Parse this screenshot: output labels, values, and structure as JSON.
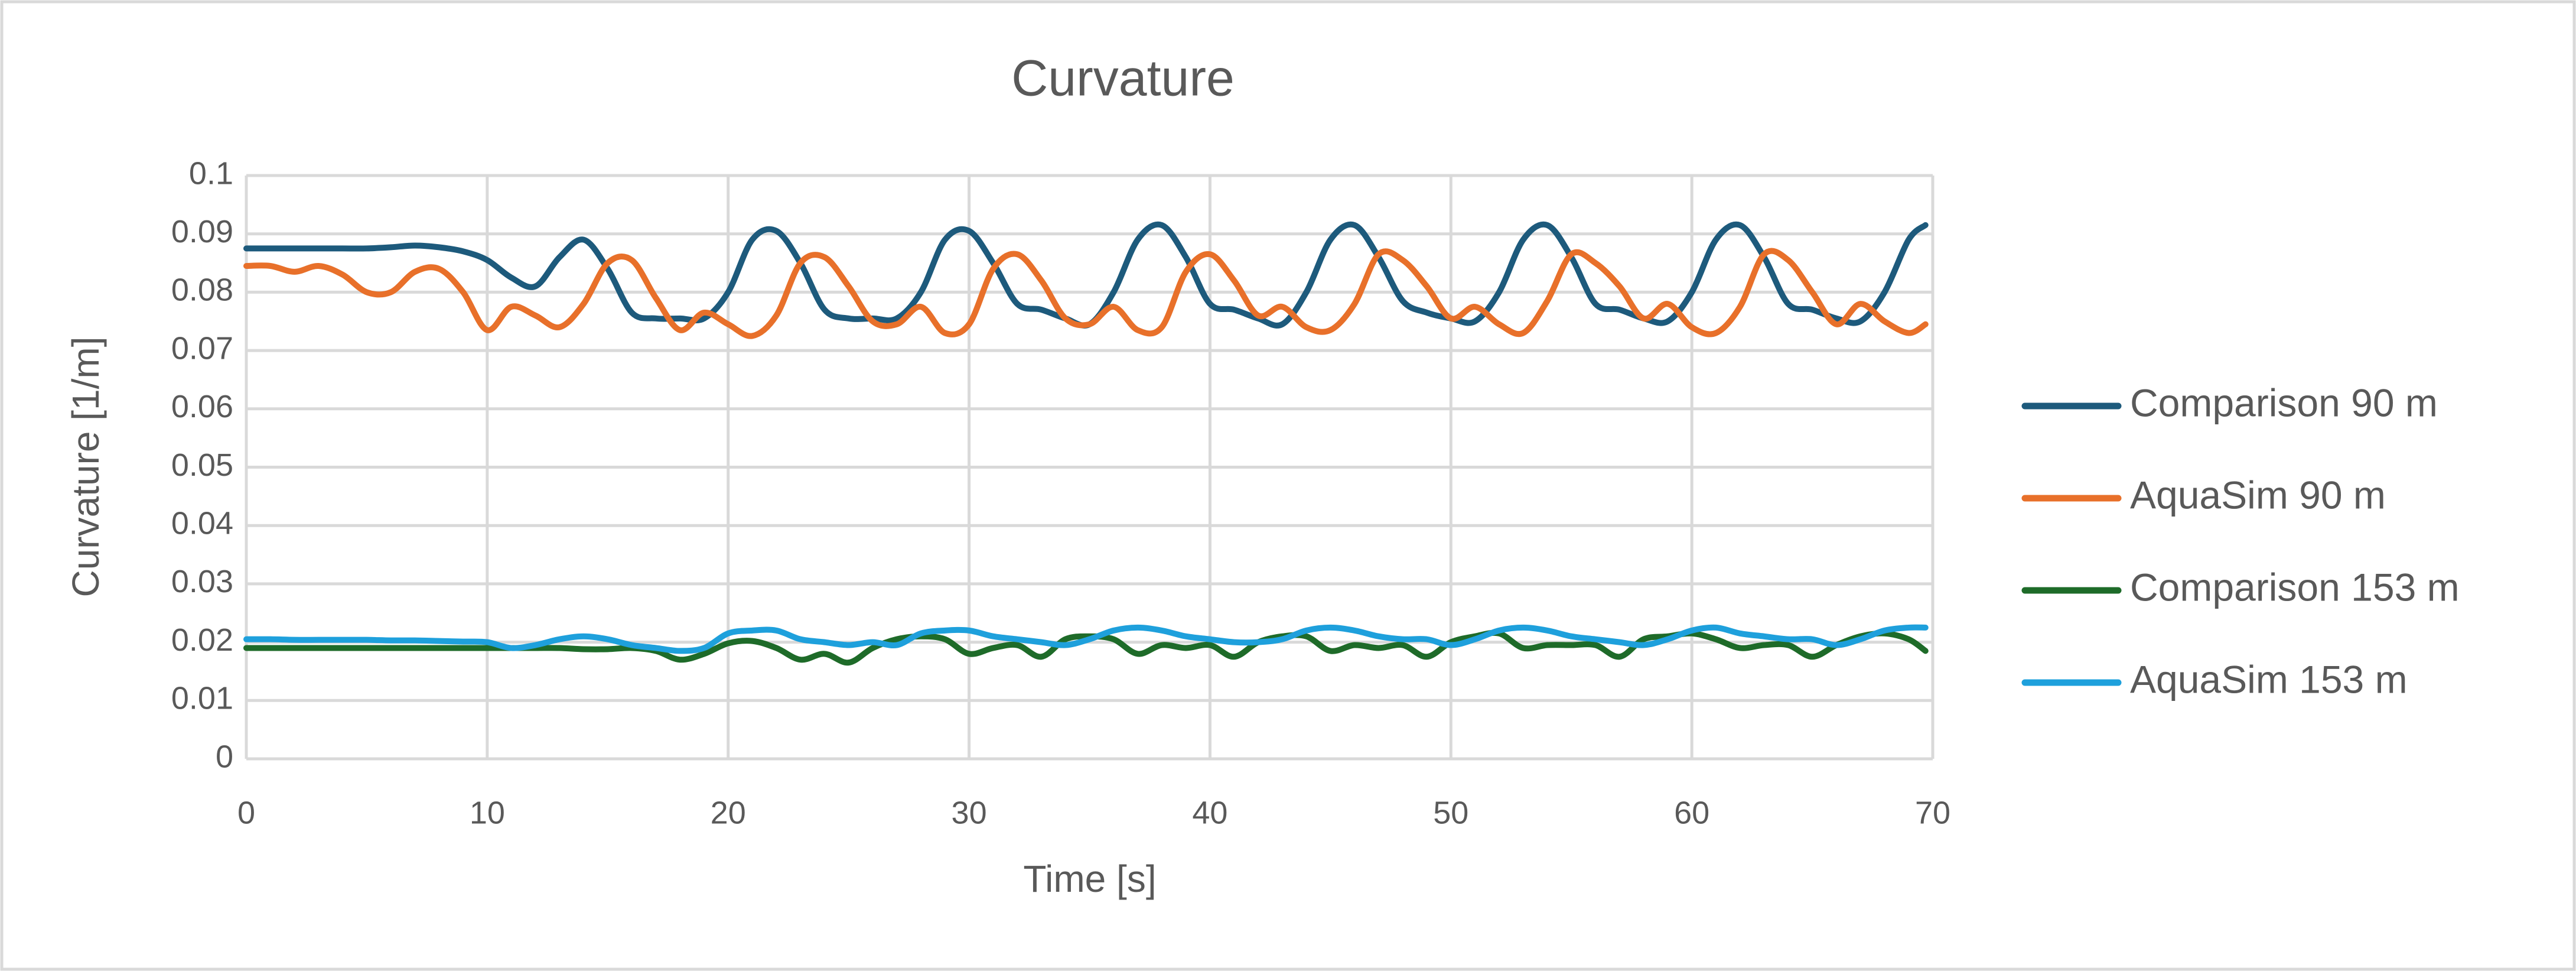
{
  "chart_data": {
    "type": "line",
    "title": "Curvature",
    "x_label": "Time [s]",
    "y_label": "Curvature [1/m]",
    "x": [
      0,
      1,
      2,
      3,
      4,
      5,
      6,
      7,
      8,
      9,
      10,
      11,
      12,
      13,
      14,
      15,
      16,
      17,
      18,
      19,
      20,
      21,
      22,
      23,
      24,
      25,
      26,
      27,
      28,
      29,
      30,
      31,
      32,
      33,
      34,
      35,
      36,
      37,
      38,
      39,
      40,
      41,
      42,
      43,
      44,
      45,
      46,
      47,
      48,
      49,
      50,
      51,
      52,
      53,
      54,
      55,
      56,
      57,
      58,
      59,
      60,
      61,
      62,
      63,
      64,
      65,
      66,
      67,
      68,
      69,
      69.7
    ],
    "series": [
      {
        "name": "Comparison 90 m",
        "color": "#1d5a7c",
        "values": [
          0.0875,
          0.0875,
          0.0875,
          0.0875,
          0.0875,
          0.0875,
          0.0877,
          0.088,
          0.0877,
          0.087,
          0.0855,
          0.0825,
          0.081,
          0.086,
          0.089,
          0.084,
          0.0765,
          0.0755,
          0.0755,
          0.0755,
          0.08,
          0.089,
          0.0905,
          0.085,
          0.077,
          0.0755,
          0.0755,
          0.0755,
          0.08,
          0.089,
          0.0905,
          0.085,
          0.078,
          0.077,
          0.0755,
          0.0745,
          0.08,
          0.089,
          0.0915,
          0.086,
          0.078,
          0.077,
          0.0755,
          0.0745,
          0.08,
          0.089,
          0.0915,
          0.086,
          0.0785,
          0.0765,
          0.0755,
          0.075,
          0.08,
          0.089,
          0.0915,
          0.086,
          0.078,
          0.077,
          0.0755,
          0.075,
          0.08,
          0.089,
          0.0915,
          0.086,
          0.078,
          0.077,
          0.0755,
          0.075,
          0.08,
          0.089,
          0.0915
        ]
      },
      {
        "name": "AquaSim 90 m",
        "color": "#e8702a",
        "values": [
          0.0845,
          0.0845,
          0.0835,
          0.0845,
          0.083,
          0.08,
          0.08,
          0.0835,
          0.084,
          0.08,
          0.0735,
          0.0775,
          0.076,
          0.074,
          0.078,
          0.085,
          0.0855,
          0.079,
          0.0735,
          0.0765,
          0.0745,
          0.0725,
          0.076,
          0.085,
          0.086,
          0.081,
          0.075,
          0.0745,
          0.0775,
          0.073,
          0.0745,
          0.084,
          0.0865,
          0.082,
          0.0755,
          0.0745,
          0.0775,
          0.0735,
          0.074,
          0.0835,
          0.0865,
          0.082,
          0.076,
          0.0775,
          0.074,
          0.0735,
          0.078,
          0.0865,
          0.0855,
          0.081,
          0.0755,
          0.0775,
          0.0745,
          0.073,
          0.0785,
          0.0865,
          0.085,
          0.081,
          0.0755,
          0.078,
          0.074,
          0.073,
          0.0775,
          0.0865,
          0.0855,
          0.08,
          0.0745,
          0.078,
          0.075,
          0.073,
          0.0745
        ]
      },
      {
        "name": "Comparison 153 m",
        "color": "#1e6b29",
        "values": [
          0.019,
          0.019,
          0.019,
          0.019,
          0.019,
          0.019,
          0.019,
          0.019,
          0.019,
          0.019,
          0.019,
          0.019,
          0.019,
          0.019,
          0.0188,
          0.0188,
          0.019,
          0.0185,
          0.017,
          0.018,
          0.0198,
          0.0202,
          0.019,
          0.017,
          0.018,
          0.0165,
          0.019,
          0.0205,
          0.021,
          0.0205,
          0.018,
          0.019,
          0.0195,
          0.0175,
          0.0205,
          0.021,
          0.0205,
          0.018,
          0.0195,
          0.019,
          0.0195,
          0.0175,
          0.02,
          0.021,
          0.021,
          0.0185,
          0.0195,
          0.019,
          0.0195,
          0.0175,
          0.02,
          0.021,
          0.0215,
          0.019,
          0.0195,
          0.0195,
          0.0195,
          0.0175,
          0.0205,
          0.021,
          0.0215,
          0.0205,
          0.019,
          0.0195,
          0.0195,
          0.0175,
          0.0195,
          0.021,
          0.0215,
          0.0205,
          0.0185
        ]
      },
      {
        "name": "AquaSim 153 m",
        "color": "#1ea0dc",
        "values": [
          0.0205,
          0.0205,
          0.0204,
          0.0204,
          0.0204,
          0.0204,
          0.0203,
          0.0203,
          0.0202,
          0.0201,
          0.02,
          0.019,
          0.0195,
          0.0205,
          0.021,
          0.0205,
          0.0195,
          0.019,
          0.0185,
          0.019,
          0.0215,
          0.022,
          0.022,
          0.0205,
          0.02,
          0.0195,
          0.02,
          0.0195,
          0.0215,
          0.022,
          0.022,
          0.021,
          0.0205,
          0.02,
          0.0195,
          0.0205,
          0.022,
          0.0225,
          0.022,
          0.021,
          0.0205,
          0.02,
          0.02,
          0.0205,
          0.022,
          0.0225,
          0.022,
          0.021,
          0.0205,
          0.0205,
          0.0195,
          0.0205,
          0.022,
          0.0225,
          0.022,
          0.021,
          0.0205,
          0.02,
          0.0195,
          0.0205,
          0.022,
          0.0225,
          0.0215,
          0.021,
          0.0205,
          0.0205,
          0.0195,
          0.0205,
          0.022,
          0.0225,
          0.0225
        ]
      }
    ],
    "xlim": [
      0,
      70
    ],
    "xticks": [
      0,
      10,
      20,
      30,
      40,
      50,
      60,
      70
    ],
    "ylim": [
      0,
      0.1
    ],
    "yticks": [
      0,
      0.01,
      0.02,
      0.03,
      0.04,
      0.05,
      0.06,
      0.07,
      0.08,
      0.09,
      0.1
    ],
    "grid": true,
    "legend": "right"
  }
}
